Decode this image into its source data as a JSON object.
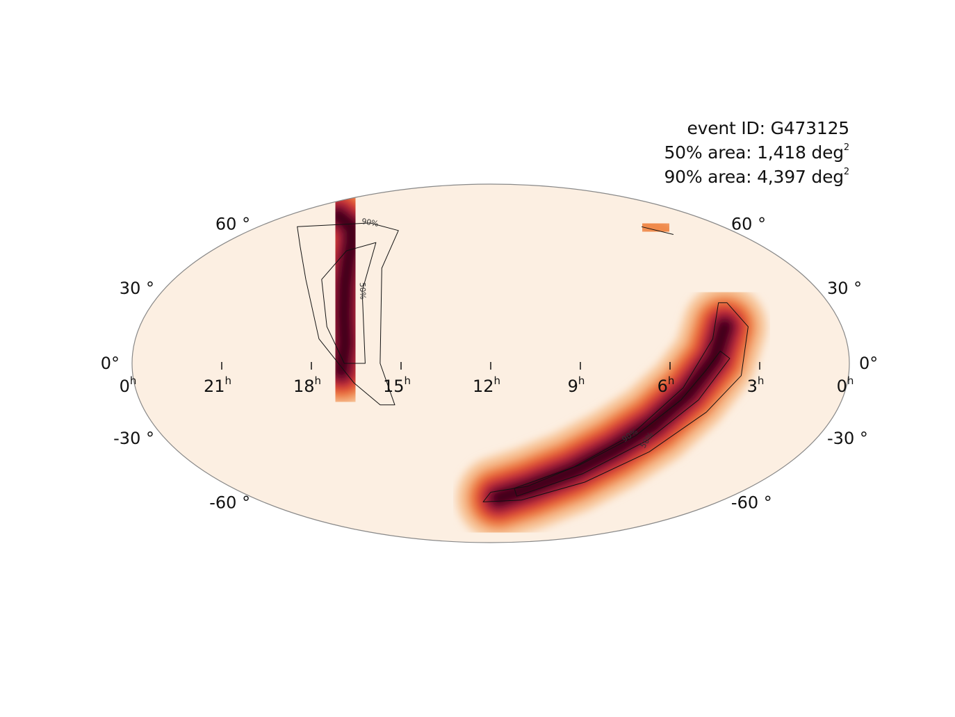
{
  "info": {
    "event_line": "event ID: G473125",
    "area50_text": "50% area: 1,418 deg",
    "area90_text": "90% area: 4,397 deg",
    "area_unit_superscript": "2"
  },
  "map": {
    "projection": "Mollweide",
    "coordinates": "equatorial (RA/Dec)",
    "background_color": "#fcefe2",
    "outline_color": "#888888",
    "colormap": "cylon",
    "colormap_stops": [
      "#fcefe2",
      "#f7c497",
      "#f08a4b",
      "#e24a33",
      "#b5203a",
      "#7a0f34",
      "#3d0318"
    ],
    "contour_color": "#111111",
    "ra_tick_labels": [
      {
        "hours": 24,
        "text": "0",
        "sup": "h"
      },
      {
        "hours": 21,
        "text": "21",
        "sup": "h"
      },
      {
        "hours": 18,
        "text": "18",
        "sup": "h"
      },
      {
        "hours": 15,
        "text": "15",
        "sup": "h"
      },
      {
        "hours": 12,
        "text": "12",
        "sup": "h"
      },
      {
        "hours": 9,
        "text": "9",
        "sup": "h"
      },
      {
        "hours": 6,
        "text": "6",
        "sup": "h"
      },
      {
        "hours": 3,
        "text": "3",
        "sup": "h"
      },
      {
        "hours": 0,
        "text": "0",
        "sup": "h"
      }
    ],
    "dec_tick_labels": [
      {
        "dec": 60,
        "text": "60 °"
      },
      {
        "dec": 30,
        "text": "30 °"
      },
      {
        "dec": 0,
        "text": "0°"
      },
      {
        "dec": -30,
        "text": "-30 °"
      },
      {
        "dec": -60,
        "text": "-60 °"
      }
    ],
    "contour_labels": [
      "50%",
      "90%"
    ]
  },
  "chart_data": {
    "type": "heatmap",
    "description_units": "RA in hours, Dec in degrees",
    "contour_levels_percent": [
      50,
      90
    ],
    "area_50_deg2": 1418,
    "area_90_deg2": 4397,
    "probability_lobes": [
      {
        "name": "northern lobe",
        "ridge": [
          {
            "ra_h": 17.0,
            "dec": -3
          },
          {
            "ra_h": 16.9,
            "dec": 8
          },
          {
            "ra_h": 17.1,
            "dec": 20
          },
          {
            "ra_h": 17.4,
            "dec": 32
          },
          {
            "ra_h": 17.8,
            "dec": 43
          },
          {
            "ra_h": 18.3,
            "dec": 52
          },
          {
            "ra_h": 19.2,
            "dec": 60
          },
          {
            "ra_h": 21.0,
            "dec": 66
          }
        ],
        "peak": {
          "ra_h": 17.5,
          "dec": 35
        },
        "contour_50": [
          {
            "ra_h": 18.2,
            "dec": 48
          },
          {
            "ra_h": 17.2,
            "dec": 52
          },
          {
            "ra_h": 16.7,
            "dec": 30
          },
          {
            "ra_h": 16.2,
            "dec": 0
          },
          {
            "ra_h": 16.9,
            "dec": 0
          },
          {
            "ra_h": 17.6,
            "dec": 15
          },
          {
            "ra_h": 18.4,
            "dec": 35
          }
        ],
        "contour_90": [
          {
            "ra_h": 22.0,
            "dec": 60
          },
          {
            "ra_h": 18.5,
            "dec": 62
          },
          {
            "ra_h": 16.6,
            "dec": 58
          },
          {
            "ra_h": 16.3,
            "dec": 40
          },
          {
            "ra_h": 15.7,
            "dec": 0
          },
          {
            "ra_h": 15.3,
            "dec": -17
          },
          {
            "ra_h": 15.8,
            "dec": -17
          },
          {
            "ra_h": 16.6,
            "dec": -8
          },
          {
            "ra_h": 17.8,
            "dec": 10
          },
          {
            "ra_h": 19.0,
            "dec": 35
          },
          {
            "ra_h": 20.4,
            "dec": 50
          }
        ]
      },
      {
        "name": "southern lobe",
        "ridge": [
          {
            "ra_h": 4.0,
            "dec": 15
          },
          {
            "ra_h": 4.5,
            "dec": 2
          },
          {
            "ra_h": 5.3,
            "dec": -12
          },
          {
            "ra_h": 6.2,
            "dec": -25
          },
          {
            "ra_h": 7.3,
            "dec": -36
          },
          {
            "ra_h": 8.6,
            "dec": -46
          },
          {
            "ra_h": 10.2,
            "dec": -54
          },
          {
            "ra_h": 11.6,
            "dec": -59
          }
        ],
        "peak": {
          "ra_h": 6.2,
          "dec": -26
        },
        "contour_50": [
          {
            "ra_h": 4.3,
            "dec": 5
          },
          {
            "ra_h": 4.0,
            "dec": 2
          },
          {
            "ra_h": 4.9,
            "dec": -15
          },
          {
            "ra_h": 6.2,
            "dec": -32
          },
          {
            "ra_h": 8.1,
            "dec": -47
          },
          {
            "ra_h": 10.7,
            "dec": -58
          },
          {
            "ra_h": 10.9,
            "dec": -54
          },
          {
            "ra_h": 8.4,
            "dec": -43
          },
          {
            "ra_h": 6.7,
            "dec": -30
          },
          {
            "ra_h": 5.5,
            "dec": -15
          },
          {
            "ra_h": 4.8,
            "dec": -3
          }
        ],
        "contour_90": [
          {
            "ra_h": 3.6,
            "dec": 25
          },
          {
            "ra_h": 3.2,
            "dec": 15
          },
          {
            "ra_h": 3.6,
            "dec": -5
          },
          {
            "ra_h": 4.5,
            "dec": -20
          },
          {
            "ra_h": 5.9,
            "dec": -37
          },
          {
            "ra_h": 7.8,
            "dec": -51
          },
          {
            "ra_h": 10.4,
            "dec": -60
          },
          {
            "ra_h": 12.4,
            "dec": -61
          },
          {
            "ra_h": 12.0,
            "dec": -56
          },
          {
            "ra_h": 10.3,
            "dec": -53
          },
          {
            "ra_h": 8.6,
            "dec": -44
          },
          {
            "ra_h": 6.9,
            "dec": -30
          },
          {
            "ra_h": 5.5,
            "dec": -10
          },
          {
            "ra_h": 4.5,
            "dec": 10
          },
          {
            "ra_h": 3.9,
            "dec": 25
          }
        ]
      },
      {
        "name": "faint northern patch",
        "ridge": [
          {
            "ra_h": 3.8,
            "dec": 61
          },
          {
            "ra_h": 3.3,
            "dec": 58
          }
        ],
        "peak": {
          "ra_h": 3.6,
          "dec": 60
        },
        "contour_90": [
          {
            "ra_h": 4.2,
            "dec": 60
          },
          {
            "ra_h": 3.2,
            "dec": 56
          }
        ]
      }
    ]
  }
}
